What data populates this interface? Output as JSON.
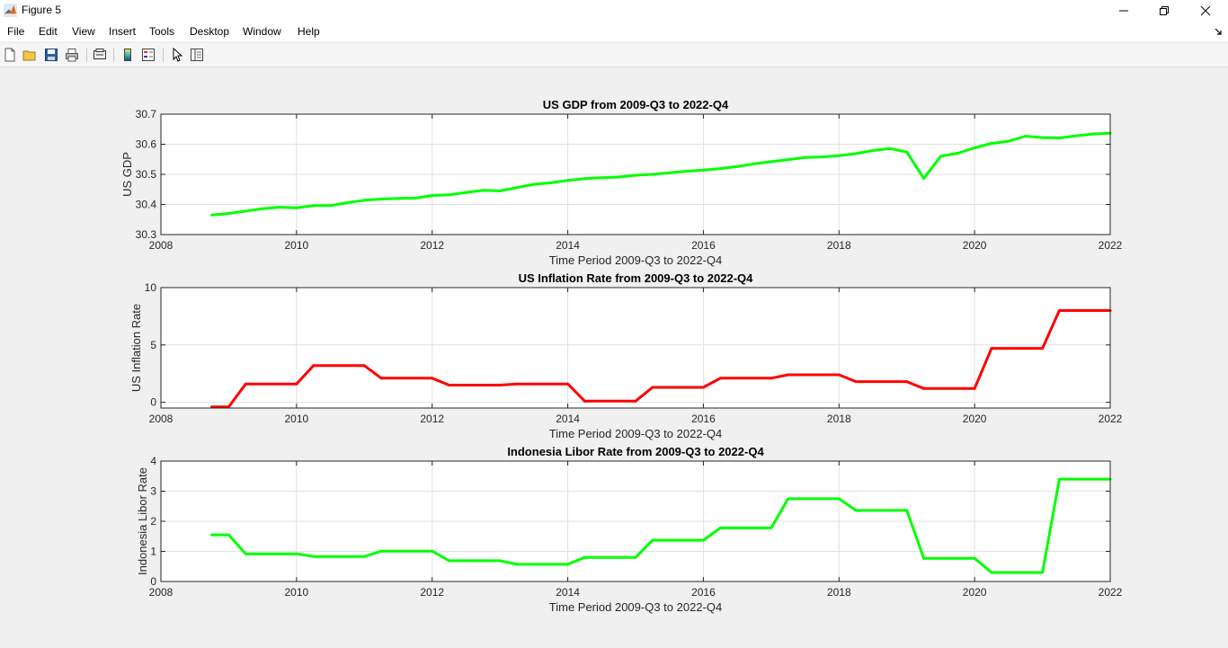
{
  "window": {
    "title": "Figure 5"
  },
  "menu": [
    "File",
    "Edit",
    "View",
    "Insert",
    "Tools",
    "Desktop",
    "Window",
    "Help"
  ],
  "toolbar": {
    "icons": [
      "new-figure-icon",
      "open-file-icon",
      "save-icon",
      "print-icon",
      "link-plot-icon",
      "insert-colorbar-icon",
      "insert-legend-icon",
      "edit-plot-icon",
      "property-inspector-icon"
    ]
  },
  "chart_data": [
    {
      "type": "line",
      "title": "US GDP from 2009-Q3 to 2022-Q4",
      "xlabel": "Time Period 2009-Q3 to 2022-Q4",
      "ylabel": "US GDP",
      "xlim": [
        2008,
        2022
      ],
      "ylim": [
        30.3,
        30.7
      ],
      "xticks": [
        "2008",
        "2010",
        "2012",
        "2014",
        "2016",
        "2018",
        "2020",
        "2022"
      ],
      "yticks": [
        "30.3",
        "30.4",
        "30.5",
        "30.6",
        "30.7"
      ],
      "grid": true,
      "color": "#00ff00",
      "x": [
        2008.75,
        2009.0,
        2009.25,
        2009.5,
        2009.75,
        2010.0,
        2010.25,
        2010.5,
        2010.75,
        2011.0,
        2011.25,
        2011.5,
        2011.75,
        2012.0,
        2012.25,
        2012.5,
        2012.75,
        2013.0,
        2013.25,
        2013.5,
        2013.75,
        2014.0,
        2014.25,
        2014.5,
        2014.75,
        2015.0,
        2015.25,
        2015.5,
        2015.75,
        2016.0,
        2016.25,
        2016.5,
        2016.75,
        2017.0,
        2017.25,
        2017.5,
        2017.75,
        2018.0,
        2018.25,
        2018.5,
        2018.75,
        2019.0,
        2019.25,
        2019.5,
        2019.75,
        2020.0,
        2020.25,
        2020.5,
        2020.75,
        2021.0,
        2021.25,
        2021.5,
        2021.75,
        2022.0
      ],
      "values": [
        30.365,
        30.37,
        30.378,
        30.386,
        30.391,
        30.389,
        30.396,
        30.396,
        30.406,
        30.414,
        30.418,
        30.42,
        30.421,
        30.43,
        30.432,
        30.44,
        30.447,
        30.445,
        30.456,
        30.467,
        30.472,
        30.48,
        30.486,
        30.489,
        30.491,
        30.497,
        30.5,
        30.505,
        30.51,
        30.514,
        30.519,
        30.526,
        30.535,
        30.542,
        30.549,
        30.556,
        30.558,
        30.562,
        30.569,
        30.579,
        30.586,
        30.574,
        30.487,
        30.56,
        30.57,
        30.588,
        30.603,
        30.61,
        30.627,
        30.622,
        30.621,
        30.628,
        30.634,
        30.637
      ]
    },
    {
      "type": "line",
      "title": "US Inflation Rate from 2009-Q3 to 2022-Q4",
      "xlabel": "Time Period 2009-Q3 to 2022-Q4",
      "ylabel": "US Inflation Rate",
      "xlim": [
        2008,
        2022
      ],
      "ylim": [
        -0.5,
        10
      ],
      "xticks": [
        "2008",
        "2010",
        "2012",
        "2014",
        "2016",
        "2018",
        "2020",
        "2022"
      ],
      "yticks": [
        "0",
        "5",
        "10"
      ],
      "grid": true,
      "color": "#ff0000",
      "x": [
        2008.75,
        2009.0,
        2009.25,
        2010.0,
        2010.25,
        2011.0,
        2011.25,
        2012.0,
        2012.25,
        2013.0,
        2013.25,
        2014.0,
        2014.25,
        2015.0,
        2015.25,
        2016.0,
        2016.25,
        2017.0,
        2017.25,
        2018.0,
        2018.25,
        2019.0,
        2019.25,
        2020.0,
        2020.25,
        2021.0,
        2021.25,
        2022.0
      ],
      "values": [
        -0.4,
        -0.4,
        1.6,
        1.6,
        3.2,
        3.2,
        2.1,
        2.1,
        1.5,
        1.5,
        1.6,
        1.6,
        0.1,
        0.1,
        1.3,
        1.3,
        2.1,
        2.1,
        2.4,
        2.4,
        1.8,
        1.8,
        1.2,
        1.2,
        4.7,
        4.7,
        8.0,
        8.0
      ]
    },
    {
      "type": "line",
      "title": "Indonesia Libor Rate from 2009-Q3 to 2022-Q4",
      "xlabel": "Time Period 2009-Q3 to 2022-Q4",
      "ylabel": "Indonesia Libor Rate",
      "xlim": [
        2008,
        2022
      ],
      "ylim": [
        0,
        4
      ],
      "xticks": [
        "2008",
        "2010",
        "2012",
        "2014",
        "2016",
        "2018",
        "2020",
        "2022"
      ],
      "yticks": [
        "0",
        "1",
        "2",
        "3",
        "4"
      ],
      "grid": true,
      "color": "#00ff00",
      "x": [
        2008.75,
        2009.0,
        2009.25,
        2010.0,
        2010.25,
        2011.0,
        2011.25,
        2012.0,
        2012.25,
        2013.0,
        2013.25,
        2014.0,
        2014.25,
        2015.0,
        2015.25,
        2016.0,
        2016.25,
        2017.0,
        2017.25,
        2018.0,
        2018.25,
        2019.0,
        2019.25,
        2020.0,
        2020.25,
        2021.0,
        2021.25,
        2022.0
      ],
      "values": [
        1.55,
        1.55,
        0.92,
        0.92,
        0.83,
        0.83,
        1.01,
        1.01,
        0.69,
        0.69,
        0.57,
        0.57,
        0.8,
        0.8,
        1.37,
        1.37,
        1.78,
        1.78,
        2.75,
        2.75,
        2.36,
        2.36,
        0.77,
        0.77,
        0.3,
        0.3,
        3.4,
        3.4
      ]
    }
  ]
}
